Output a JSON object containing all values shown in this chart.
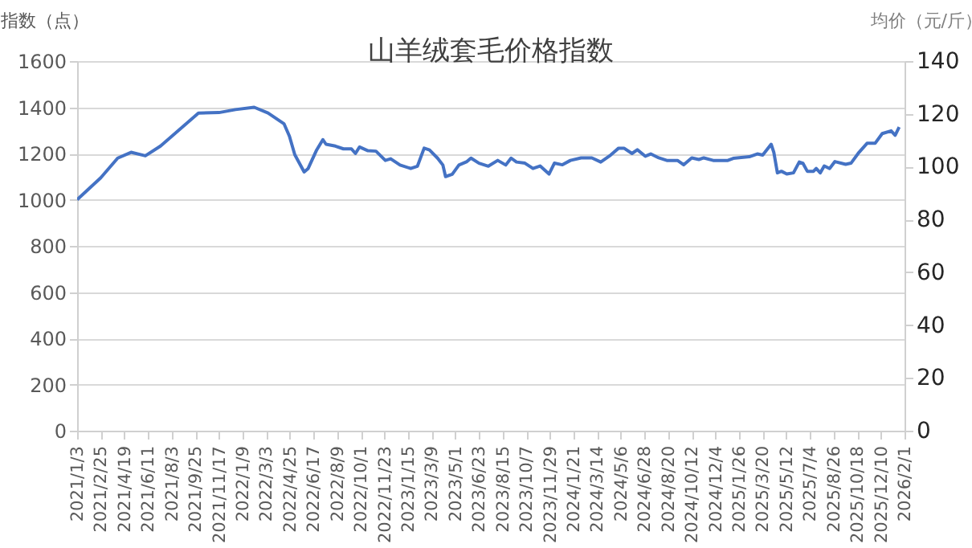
{
  "chart_data": {
    "type": "line",
    "title": "山羊绒套毛价格指数",
    "ylabel": "指数（点）",
    "y2label": "均价（元/斤）",
    "x": [
      "2021-01-03",
      "2021-02-25",
      "2021-04-04",
      "2021-05-04",
      "2021-06-05",
      "2021-07-09",
      "2021-10-02",
      "2021-11-17",
      "2021-12-24",
      "2022-02-04",
      "2022-03-07",
      "2022-04-12",
      "2022-04-24",
      "2022-05-06",
      "2022-05-27",
      "2022-06-05",
      "2022-06-24",
      "2022-07-08",
      "2022-07-15",
      "2022-08-05",
      "2022-08-23",
      "2022-09-10",
      "2022-09-19",
      "2022-09-28",
      "2022-10-17",
      "2022-11-04",
      "2022-11-25",
      "2022-12-07",
      "2022-12-28",
      "2023-01-21",
      "2023-02-05",
      "2023-02-20",
      "2023-03-04",
      "2023-03-22",
      "2023-04-03",
      "2023-04-09",
      "2023-04-24",
      "2023-05-09",
      "2023-05-27",
      "2023-06-05",
      "2023-06-23",
      "2023-07-14",
      "2023-08-04",
      "2023-08-22",
      "2023-09-03",
      "2023-09-15",
      "2023-10-04",
      "2023-10-22",
      "2023-11-07",
      "2023-11-27",
      "2023-12-09",
      "2023-12-27",
      "2024-01-14",
      "2024-02-07",
      "2024-03-02",
      "2024-03-22",
      "2024-04-13",
      "2024-05-01",
      "2024-05-13",
      "2024-05-31",
      "2024-06-12",
      "2024-06-30",
      "2024-07-12",
      "2024-07-30",
      "2024-08-17",
      "2024-09-10",
      "2024-09-24",
      "2024-10-12",
      "2024-10-28",
      "2024-11-08",
      "2024-11-29",
      "2025-01-01",
      "2025-01-13",
      "2025-02-18",
      "2025-03-08",
      "2025-03-20",
      "2025-04-08",
      "2025-04-14",
      "2025-04-22",
      "2025-05-01",
      "2025-05-13",
      "2025-05-28",
      "2025-06-10",
      "2025-06-18",
      "2025-06-28",
      "2025-07-12",
      "2025-07-18",
      "2025-07-27",
      "2025-08-05",
      "2025-08-17",
      "2025-08-29",
      "2025-09-22",
      "2025-10-04",
      "2025-10-22",
      "2025-11-09",
      "2025-11-27",
      "2025-12-13",
      "2026-01-02",
      "2026-01-11",
      "2026-01-20"
    ],
    "series": [
      {
        "color": "#4472c4",
        "values": [
          1000,
          1095,
          1180,
          1205,
          1190,
          1232,
          1375,
          1377,
          1390,
          1400,
          1375,
          1328,
          1275,
          1195,
          1120,
          1135,
          1215,
          1260,
          1240,
          1232,
          1220,
          1220,
          1200,
          1228,
          1212,
          1210,
          1170,
          1177,
          1150,
          1135,
          1145,
          1223,
          1215,
          1180,
          1150,
          1100,
          1110,
          1150,
          1165,
          1180,
          1158,
          1145,
          1170,
          1150,
          1180,
          1163,
          1158,
          1135,
          1146,
          1111,
          1158,
          1151,
          1170,
          1181,
          1181,
          1163,
          1193,
          1223,
          1223,
          1200,
          1216,
          1188,
          1198,
          1181,
          1170,
          1170,
          1151,
          1181,
          1174,
          1181,
          1170,
          1170,
          1179,
          1186,
          1198,
          1193,
          1240,
          1205,
          1116,
          1123,
          1111,
          1116,
          1163,
          1158,
          1123,
          1123,
          1135,
          1116,
          1146,
          1135,
          1165,
          1153,
          1158,
          1205,
          1244,
          1244,
          1286,
          1298,
          1279,
          1314
        ]
      }
    ],
    "xlim": [
      "2021-01-03",
      "2026-02-01"
    ],
    "xticks": [
      {
        "value": "2021-01-03",
        "label": "2021/1/3"
      },
      {
        "value": "2021-02-25",
        "label": "2021/2/25"
      },
      {
        "value": "2021-04-19",
        "label": "2021/4/19"
      },
      {
        "value": "2021-06-11",
        "label": "2021/6/11"
      },
      {
        "value": "2021-08-03",
        "label": "2021/8/3"
      },
      {
        "value": "2021-09-25",
        "label": "2021/9/25"
      },
      {
        "value": "2021-11-17",
        "label": "2021/11/17"
      },
      {
        "value": "2022-01-09",
        "label": "2022/1/9"
      },
      {
        "value": "2022-03-03",
        "label": "2022/3/3"
      },
      {
        "value": "2022-04-25",
        "label": "2022/4/25"
      },
      {
        "value": "2022-06-17",
        "label": "2022/6/17"
      },
      {
        "value": "2022-08-09",
        "label": "2022/8/9"
      },
      {
        "value": "2022-10-01",
        "label": "2022/10/1"
      },
      {
        "value": "2022-11-23",
        "label": "2022/11/23"
      },
      {
        "value": "2023-01-15",
        "label": "2023/1/15"
      },
      {
        "value": "2023-03-09",
        "label": "2023/3/9"
      },
      {
        "value": "2023-05-01",
        "label": "2023/5/1"
      },
      {
        "value": "2023-06-23",
        "label": "2023/6/23"
      },
      {
        "value": "2023-08-15",
        "label": "2023/8/15"
      },
      {
        "value": "2023-10-07",
        "label": "2023/10/7"
      },
      {
        "value": "2023-11-29",
        "label": "2023/11/29"
      },
      {
        "value": "2024-01-21",
        "label": "2024/1/21"
      },
      {
        "value": "2024-03-14",
        "label": "2024/3/14"
      },
      {
        "value": "2024-05-06",
        "label": "2024/5/6"
      },
      {
        "value": "2024-06-28",
        "label": "2024/6/28"
      },
      {
        "value": "2024-08-20",
        "label": "2024/8/20"
      },
      {
        "value": "2024-10-12",
        "label": "2024/10/12"
      },
      {
        "value": "2024-12-04",
        "label": "2024/12/4"
      },
      {
        "value": "2025-01-26",
        "label": "2025/1/26"
      },
      {
        "value": "2025-03-20",
        "label": "2025/3/20"
      },
      {
        "value": "2025-05-12",
        "label": "2025/5/12"
      },
      {
        "value": "2025-07-04",
        "label": "2025/7/4"
      },
      {
        "value": "2025-08-26",
        "label": "2025/8/26"
      },
      {
        "value": "2025-10-18",
        "label": "2025/10/18"
      },
      {
        "value": "2025-12-10",
        "label": "2025/12/10"
      },
      {
        "value": "2026-02-01",
        "label": "2026/2/1"
      }
    ],
    "ylim": [
      0,
      1600
    ],
    "yticks": [
      0,
      200,
      400,
      600,
      800,
      1000,
      1200,
      1400,
      1600
    ],
    "y2lim": [
      0,
      140
    ],
    "y2ticks": [
      0,
      20,
      40,
      60,
      80,
      100,
      120,
      140
    ],
    "grid": "y",
    "line_style": "solid"
  }
}
